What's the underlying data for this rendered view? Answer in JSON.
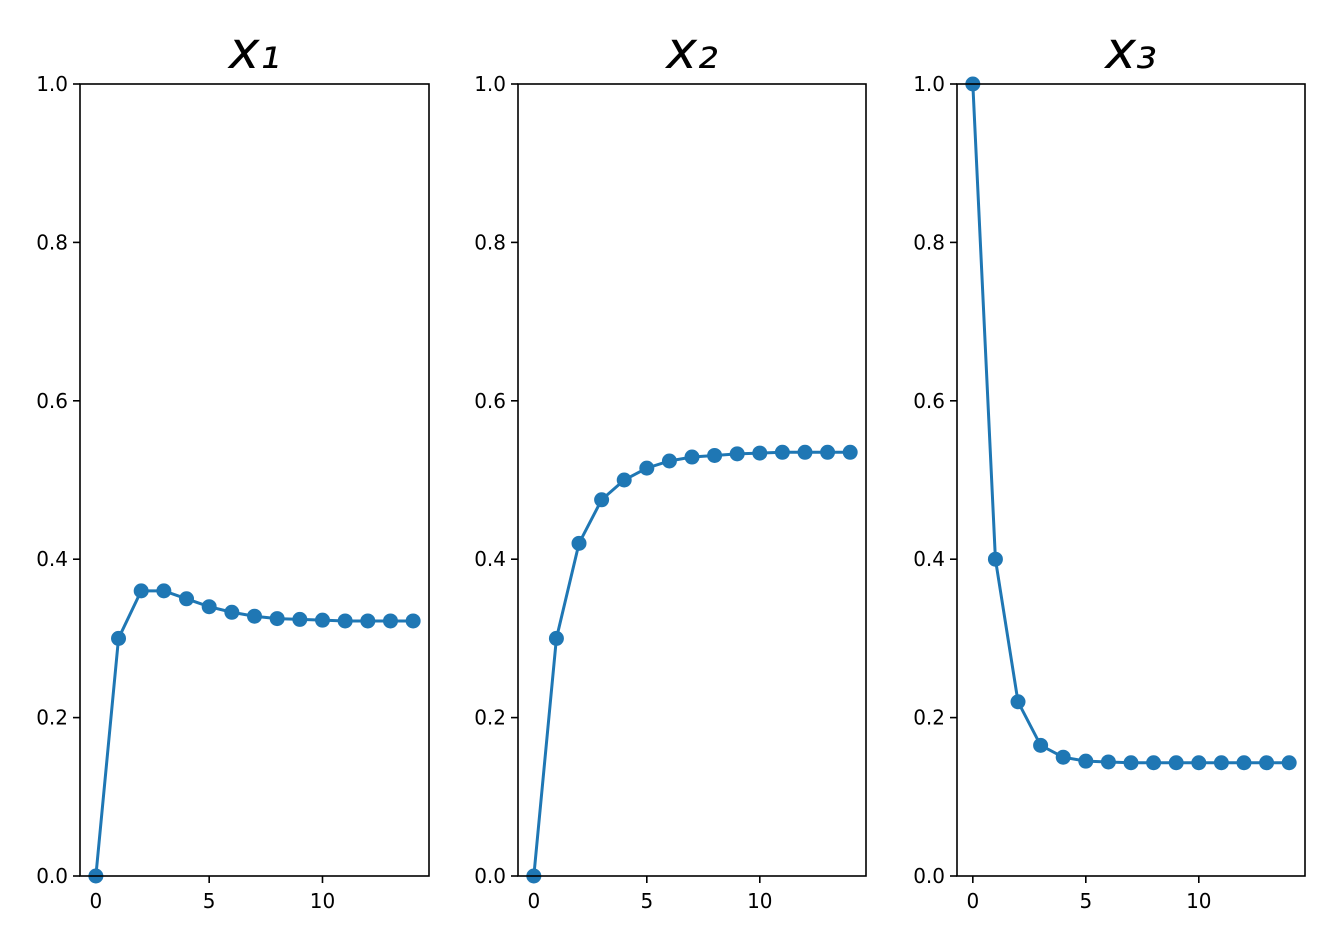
{
  "chart_data": [
    {
      "type": "line",
      "title": "x₁",
      "color": "#1f77b4",
      "x": [
        0,
        1,
        2,
        3,
        4,
        5,
        6,
        7,
        8,
        9,
        10,
        11,
        12,
        13,
        14
      ],
      "values": [
        0,
        0.3,
        0.36,
        0.36,
        0.35,
        0.34,
        0.333,
        0.328,
        0.325,
        0.324,
        0.323,
        0.322,
        0.322,
        0.322,
        0.322
      ],
      "xlim": [
        -0.7,
        14.7
      ],
      "ylim": [
        0,
        1
      ],
      "xticks": [
        0,
        5,
        10
      ],
      "yticks": [
        {
          "value": 0,
          "label": "0.0"
        },
        {
          "value": 0.2,
          "label": "0.2"
        },
        {
          "value": 0.4,
          "label": "0.4"
        },
        {
          "value": 0.6,
          "label": "0.6"
        },
        {
          "value": 0.8,
          "label": "0.8"
        },
        {
          "value": 1,
          "label": "1.0"
        }
      ]
    },
    {
      "type": "line",
      "title": "x₂",
      "color": "#1f77b4",
      "x": [
        0,
        1,
        2,
        3,
        4,
        5,
        6,
        7,
        8,
        9,
        10,
        11,
        12,
        13,
        14
      ],
      "values": [
        0,
        0.3,
        0.42,
        0.475,
        0.5,
        0.515,
        0.524,
        0.529,
        0.531,
        0.533,
        0.534,
        0.535,
        0.535,
        0.535,
        0.535
      ],
      "xlim": [
        -0.7,
        14.7
      ],
      "ylim": [
        0,
        1
      ],
      "xticks": [
        0,
        5,
        10
      ],
      "yticks": [
        {
          "value": 0,
          "label": "0.0"
        },
        {
          "value": 0.2,
          "label": "0.2"
        },
        {
          "value": 0.4,
          "label": "0.4"
        },
        {
          "value": 0.6,
          "label": "0.6"
        },
        {
          "value": 0.8,
          "label": "0.8"
        },
        {
          "value": 1,
          "label": "1.0"
        }
      ]
    },
    {
      "type": "line",
      "title": "x₃",
      "color": "#1f77b4",
      "x": [
        0,
        1,
        2,
        3,
        4,
        5,
        6,
        7,
        8,
        9,
        10,
        11,
        12,
        13,
        14
      ],
      "values": [
        1.0,
        0.4,
        0.22,
        0.165,
        0.15,
        0.145,
        0.144,
        0.143,
        0.143,
        0.143,
        0.143,
        0.143,
        0.143,
        0.143,
        0.143
      ],
      "xlim": [
        -0.7,
        14.7
      ],
      "ylim": [
        0,
        1
      ],
      "xticks": [
        0,
        5,
        10
      ],
      "yticks": [
        {
          "value": 0,
          "label": "0.0"
        },
        {
          "value": 0.2,
          "label": "0.2"
        },
        {
          "value": 0.4,
          "label": "0.4"
        },
        {
          "value": 0.6,
          "label": "0.6"
        },
        {
          "value": 0.8,
          "label": "0.8"
        },
        {
          "value": 1,
          "label": "1.0"
        }
      ]
    }
  ]
}
